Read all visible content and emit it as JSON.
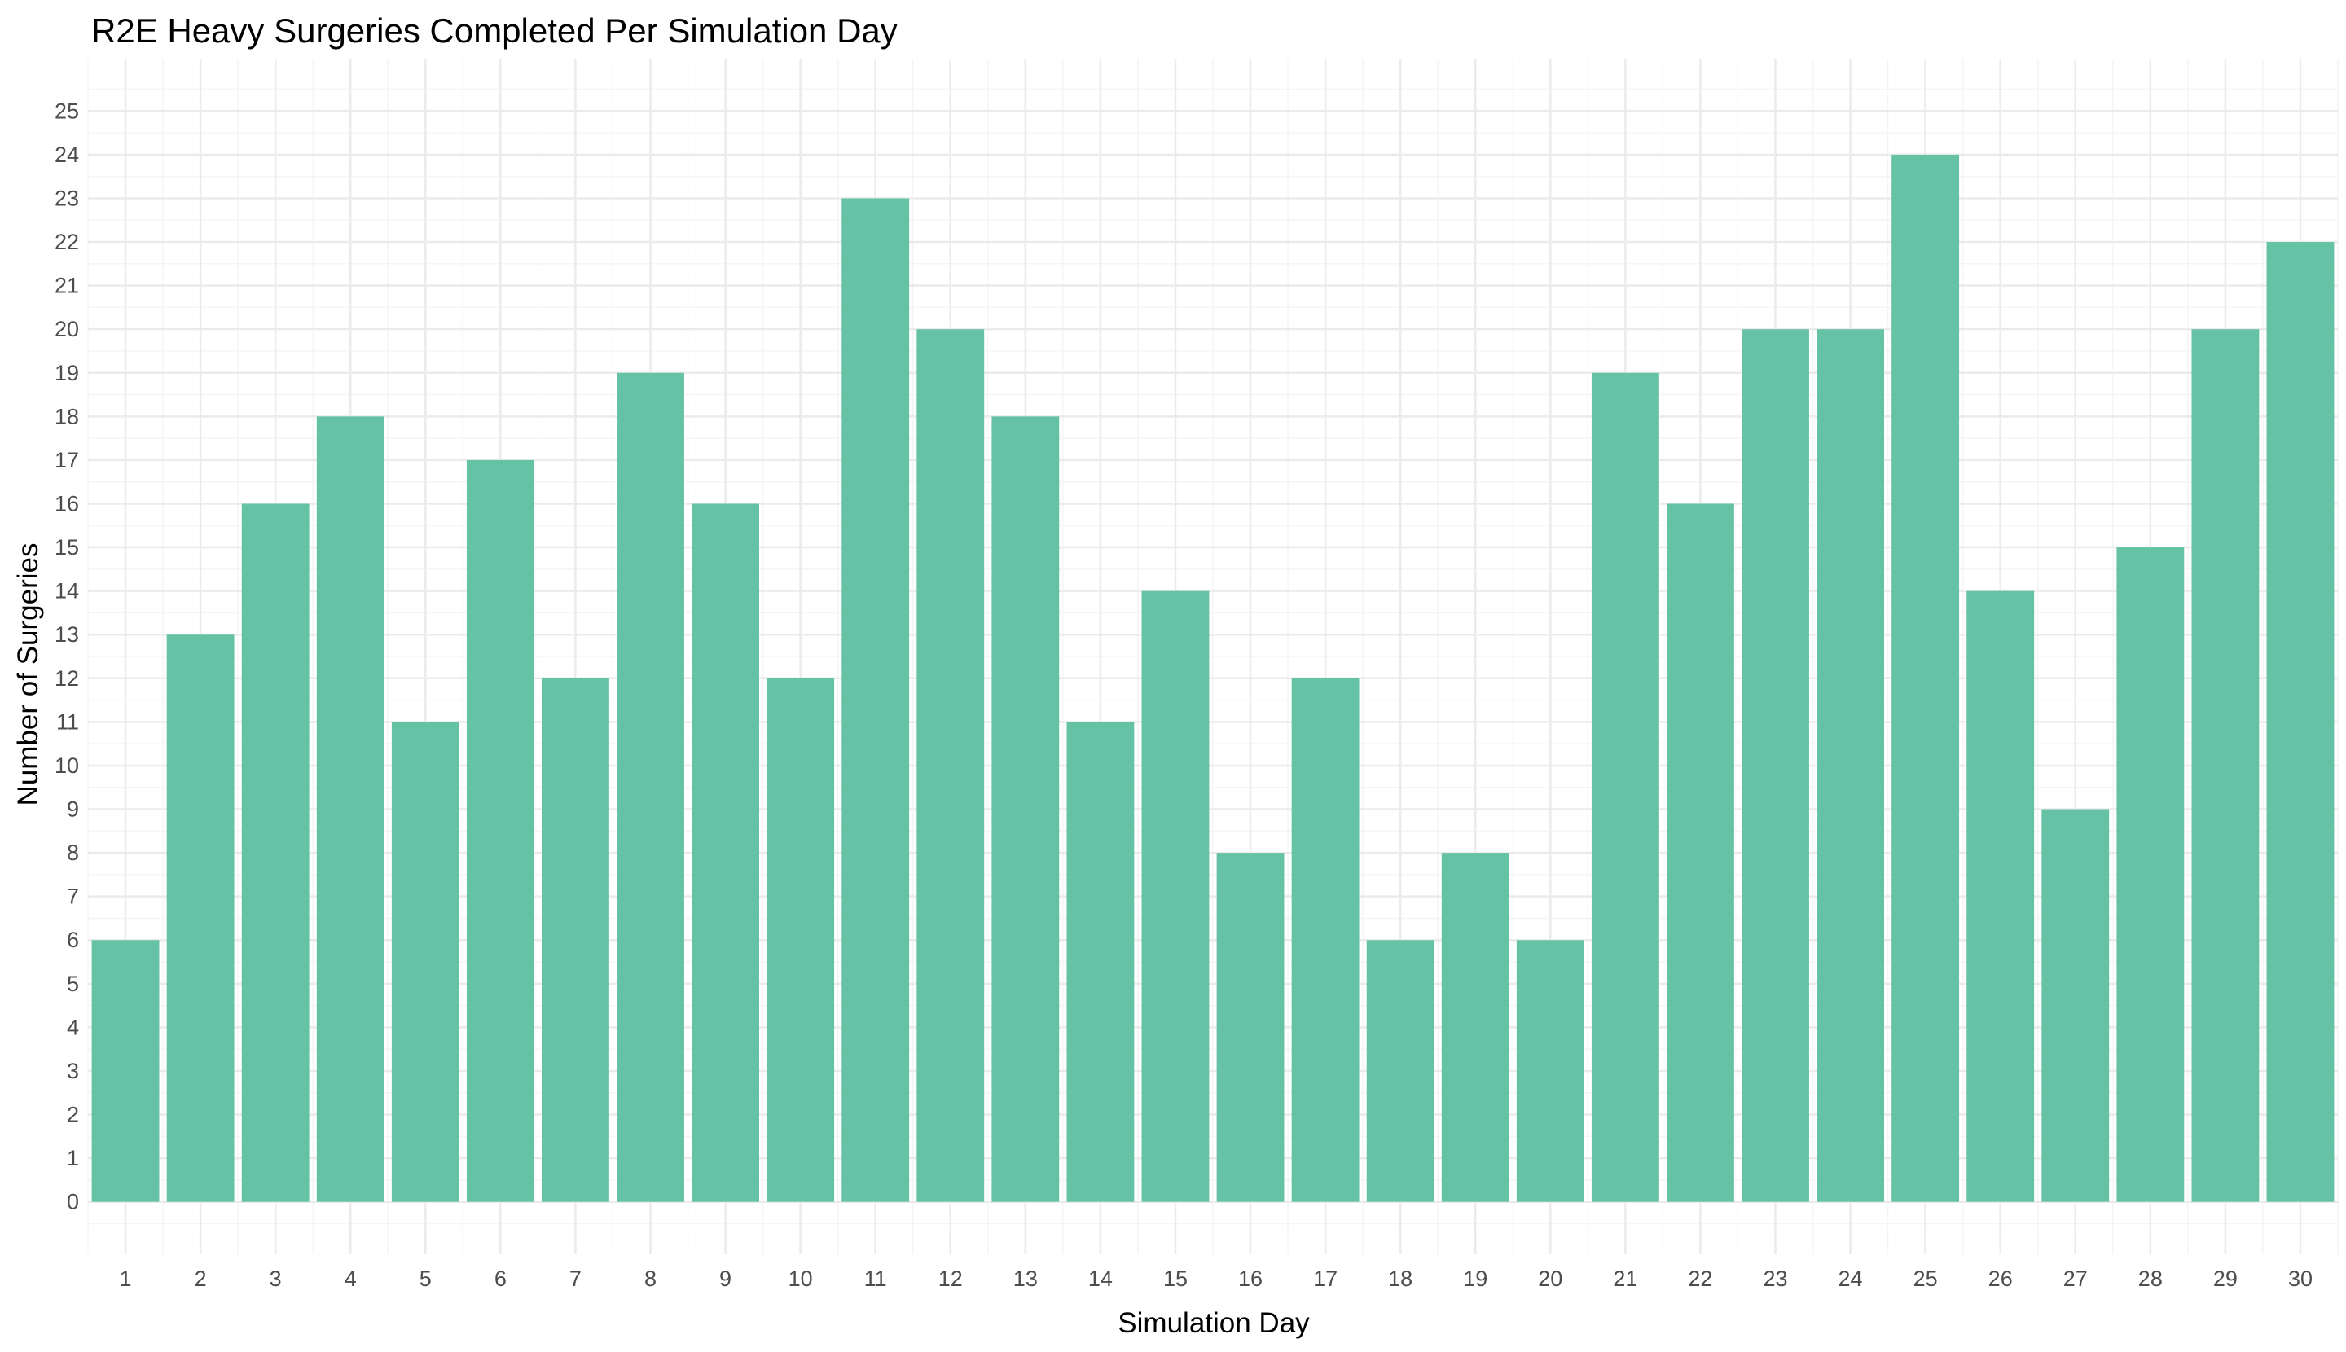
{
  "chart_data": {
    "type": "bar",
    "title": "R2E Heavy Surgeries Completed Per Simulation Day",
    "xlabel": "Simulation Day",
    "ylabel": "Number of Surgeries",
    "categories": [
      "1",
      "2",
      "3",
      "4",
      "5",
      "6",
      "7",
      "8",
      "9",
      "10",
      "11",
      "12",
      "13",
      "14",
      "15",
      "16",
      "17",
      "18",
      "19",
      "20",
      "21",
      "22",
      "23",
      "24",
      "25",
      "26",
      "27",
      "28",
      "29",
      "30"
    ],
    "values": [
      6,
      13,
      16,
      18,
      11,
      17,
      12,
      19,
      16,
      12,
      23,
      20,
      18,
      11,
      14,
      8,
      12,
      6,
      8,
      6,
      19,
      16,
      20,
      20,
      24,
      14,
      9,
      15,
      20,
      22
    ],
    "y_ticks": [
      "0",
      "1",
      "2",
      "3",
      "4",
      "5",
      "6",
      "7",
      "8",
      "9",
      "10",
      "11",
      "12",
      "13",
      "14",
      "15",
      "16",
      "17",
      "18",
      "19",
      "20",
      "21",
      "22",
      "23",
      "24",
      "25"
    ],
    "ylim": [
      -1.2,
      26.2
    ],
    "grid": true,
    "legend": "none",
    "colors": {
      "bar": "#66c2a5",
      "grid_major": "#ebebeb",
      "grid_minor": "#f5f5f5",
      "tick_text": "#4d4d4d"
    }
  }
}
